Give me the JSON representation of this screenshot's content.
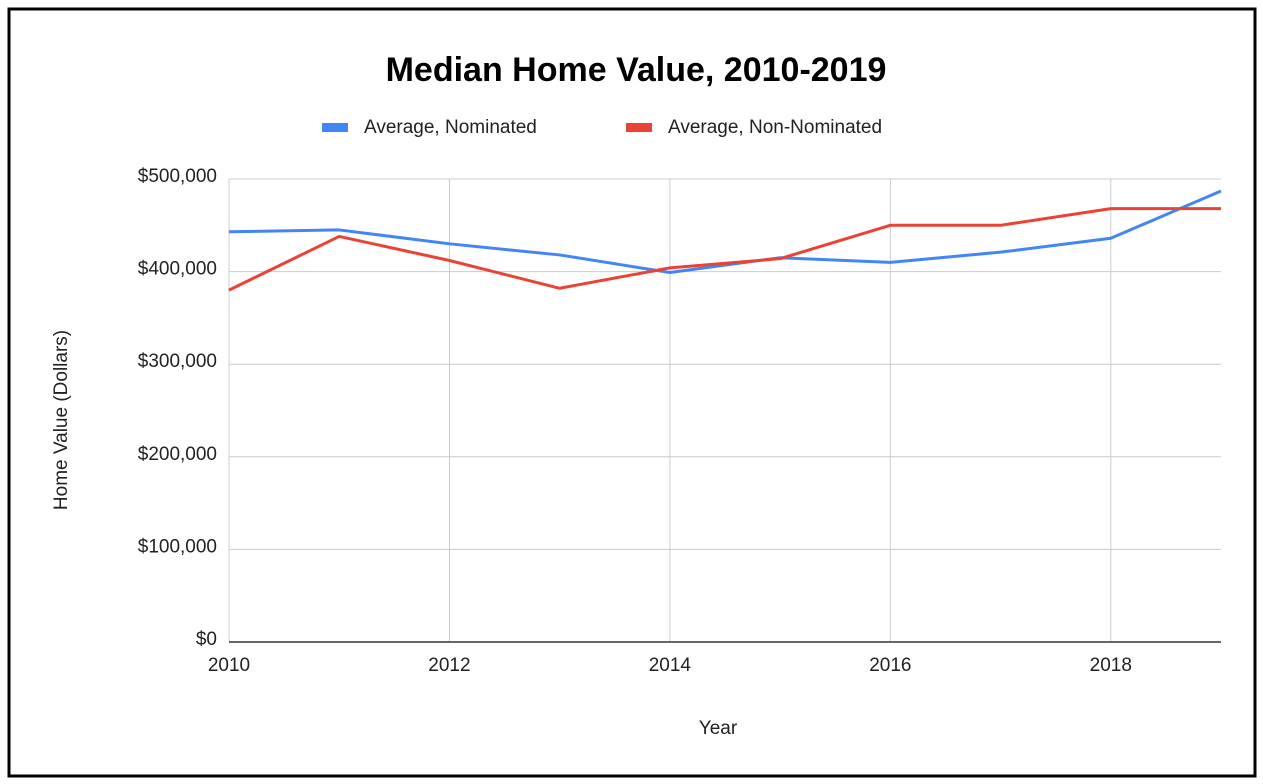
{
  "chart_data": {
    "type": "line",
    "title": "Median Home Value, 2010-2019",
    "x": [
      2010,
      2011,
      2012,
      2013,
      2014,
      2015,
      2016,
      2017,
      2018,
      2019
    ],
    "series": [
      {
        "name": "Average, Nominated",
        "color": "#4285f4",
        "values": [
          443000,
          445000,
          430000,
          418000,
          399000,
          415000,
          410000,
          421000,
          436000,
          487000
        ]
      },
      {
        "name": "Average, Non-Nominated",
        "color": "#ea4335",
        "values": [
          380000,
          438000,
          412000,
          382000,
          404000,
          414000,
          450000,
          450000,
          468000,
          468000
        ]
      }
    ],
    "xlabel": "Year",
    "ylabel": "Home Value (Dollars)",
    "xlim": [
      2010,
      2019
    ],
    "xticks": [
      2010,
      2012,
      2014,
      2016,
      2018
    ],
    "ylim": [
      0,
      500000
    ],
    "yticks": [
      {
        "value": 0,
        "label": "$0"
      },
      {
        "value": 100000,
        "label": "$100,000"
      },
      {
        "value": 200000,
        "label": "$200,000"
      },
      {
        "value": 300000,
        "label": "$300,000"
      },
      {
        "value": 400000,
        "label": "$400,000"
      },
      {
        "value": 500000,
        "label": "$500,000"
      }
    ],
    "grid": true,
    "legend": "top"
  }
}
